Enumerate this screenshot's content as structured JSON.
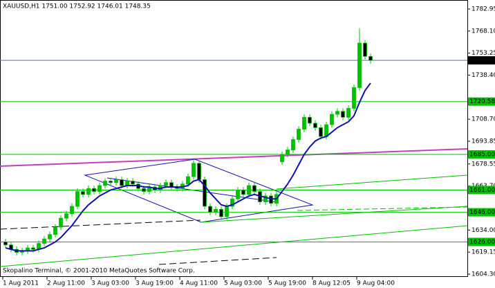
{
  "chart_data": {
    "type": "candlestick",
    "title": "XAUUSD,H1  1751.00 1752.92 1746.01 1748.35",
    "footer": "Skopalino Terminal, © 2001-2010 MetaQuotes Software Corp.",
    "open": [
      1626,
      1624,
      1621,
      1619,
      1620,
      1622,
      1621,
      1625,
      1628,
      1631,
      1636,
      1642,
      1645,
      1650,
      1660,
      1658,
      1662,
      1660,
      1664,
      1667,
      1666,
      1668,
      1664,
      1667,
      1665,
      1662,
      1660,
      1663,
      1661,
      1664,
      1666,
      1663,
      1662,
      1665,
      1670,
      1679,
      1668,
      1650,
      1646,
      1648,
      1643,
      1650,
      1655,
      1661,
      1658,
      1664,
      1660,
      1653,
      1657,
      1652,
      1680,
      1685,
      1688,
      1695,
      1702,
      1710,
      1706,
      1703,
      1697,
      1705,
      1712,
      1714,
      1710,
      1716,
      1730,
      1760,
      1751
    ],
    "high": [
      1628,
      1626,
      1623,
      1622,
      1624,
      1624,
      1627,
      1630,
      1633,
      1638,
      1644,
      1647,
      1652,
      1662,
      1662,
      1664,
      1664,
      1666,
      1669,
      1669,
      1670,
      1670,
      1669,
      1669,
      1667,
      1664,
      1665,
      1665,
      1666,
      1668,
      1668,
      1665,
      1667,
      1672,
      1681,
      1681,
      1670,
      1652,
      1650,
      1650,
      1652,
      1657,
      1663,
      1663,
      1666,
      1666,
      1662,
      1659,
      1659,
      1660,
      1687,
      1690,
      1697,
      1704,
      1712,
      1712,
      1708,
      1705,
      1707,
      1714,
      1716,
      1716,
      1718,
      1732,
      1770,
      1762,
      1752.92
    ],
    "low": [
      1622,
      1619,
      1617,
      1617,
      1618,
      1619,
      1619,
      1623,
      1626,
      1629,
      1634,
      1640,
      1643,
      1648,
      1656,
      1656,
      1658,
      1658,
      1662,
      1664,
      1664,
      1662,
      1662,
      1663,
      1660,
      1658,
      1658,
      1659,
      1659,
      1662,
      1661,
      1660,
      1660,
      1663,
      1668,
      1666,
      1648,
      1644,
      1644,
      1641,
      1641,
      1648,
      1653,
      1656,
      1656,
      1658,
      1651,
      1651,
      1650,
      1650,
      1678,
      1683,
      1686,
      1693,
      1700,
      1704,
      1701,
      1695,
      1695,
      1703,
      1710,
      1708,
      1708,
      1714,
      1728,
      1749,
      1746.01
    ],
    "close": [
      1624,
      1621,
      1619,
      1620,
      1622,
      1621,
      1625,
      1628,
      1631,
      1636,
      1642,
      1645,
      1650,
      1660,
      1658,
      1662,
      1660,
      1664,
      1667,
      1666,
      1668,
      1664,
      1667,
      1665,
      1662,
      1660,
      1663,
      1661,
      1664,
      1666,
      1663,
      1662,
      1665,
      1670,
      1679,
      1668,
      1650,
      1646,
      1648,
      1643,
      1650,
      1655,
      1661,
      1658,
      1664,
      1660,
      1653,
      1657,
      1652,
      1658,
      1685,
      1688,
      1695,
      1702,
      1710,
      1706,
      1703,
      1697,
      1705,
      1712,
      1714,
      1710,
      1716,
      1730,
      1760,
      1751,
      1748.35
    ],
    "moving_average": [
      1622,
      1621,
      1620,
      1620,
      1620,
      1620,
      1621,
      1622,
      1624,
      1626,
      1629,
      1633,
      1637,
      1642,
      1647,
      1651,
      1654,
      1657,
      1659,
      1661,
      1662,
      1663,
      1664,
      1664,
      1664,
      1663,
      1663,
      1662,
      1662,
      1663,
      1663,
      1663,
      1663,
      1664,
      1667,
      1668,
      1664,
      1659,
      1655,
      1651,
      1650,
      1651,
      1653,
      1655,
      1657,
      1658,
      1657,
      1656,
      1655,
      1655,
      1660,
      1665,
      1671,
      1678,
      1685,
      1690,
      1694,
      1696,
      1697,
      1700,
      1703,
      1705,
      1707,
      1711,
      1720,
      1728,
      1733
    ],
    "up_color": "#00c000",
    "down_color": "#000000",
    "ma_color": "#1010b0",
    "level_color": "#00c000",
    "xlim": [
      -1,
      83.5
    ],
    "xticks": [
      {
        "value": -0.5,
        "label": "1 Aug 2011"
      },
      {
        "value": 7.5,
        "label": "2 Aug 11:00"
      },
      {
        "value": 15.5,
        "label": "3 Aug 03:00"
      },
      {
        "value": 23.5,
        "label": "3 Aug 19:00"
      },
      {
        "value": 31.5,
        "label": "4 Aug 11:00"
      },
      {
        "value": 39.5,
        "label": "5 Aug 03:00"
      },
      {
        "value": 47.5,
        "label": "5 Aug 19:00"
      },
      {
        "value": 55.5,
        "label": "8 Aug 12:05"
      },
      {
        "value": 63.5,
        "label": "9 Aug 04:00"
      }
    ],
    "ylim": [
      1602.43,
      1788.55
    ],
    "yticks": [
      1782.95,
      {
        "value": 1768.1,
        "label": "1768.10"
      },
      1753.25,
      {
        "value": 1738.4,
        "label": "1738.40"
      },
      {
        "value": 1708.7,
        "label": "1708.70"
      },
      1693.85,
      1678.55,
      {
        "value": 1663.7,
        "label": "1663.70"
      },
      {
        "value": 1634,
        "label": "1634.00"
      },
      1619.15,
      {
        "value": 1604.3,
        "label": "1604.30"
      }
    ],
    "levels": [
      {
        "value": 1720.58,
        "label": "1720.58"
      },
      {
        "value": 1685,
        "label": "1685.00"
      },
      {
        "value": 1661,
        "label": "1661.00"
      },
      {
        "value": 1646,
        "label": "1646.00"
      },
      {
        "value": 1626,
        "label": "1626.00"
      }
    ],
    "current_price": 1748.35
  }
}
